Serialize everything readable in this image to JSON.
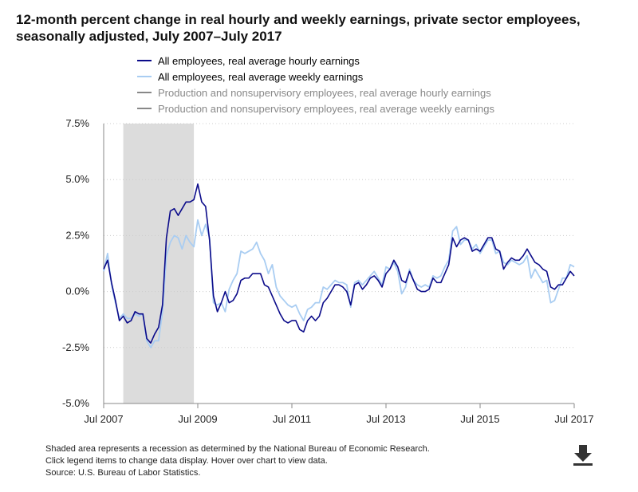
{
  "page": {
    "title": "12-month percent change in real hourly and weekly earnings, private sector employees, seasonally adjusted, July 2007–July 2017",
    "footnotes": [
      "Shaded area represents a recession as determined by the National Bureau of Economic Research.",
      "Click legend items to change data display. Hover over chart to view data.",
      "Source: U.S. Bureau of Labor Statistics."
    ],
    "download_icon": "download-icon"
  },
  "colors": {
    "hourly": "#0b0b8a",
    "weekly": "#a9cdf2",
    "inactive": "#888888",
    "recession": "#dcdcdc",
    "grid": "#cccccc",
    "axis": "#888888"
  },
  "chart_data": {
    "type": "line",
    "title": "12-month percent change in real hourly and weekly earnings, private sector employees, seasonally adjusted, July 2007–July 2017",
    "x_start": "Jul 2007",
    "x_range": [
      0,
      120
    ],
    "x_unit": "months since July 2007",
    "ylim": [
      -5.0,
      7.5
    ],
    "yticks": [
      {
        "value": 7.5,
        "label": "7.5%"
      },
      {
        "value": 5.0,
        "label": "5.0%"
      },
      {
        "value": 2.5,
        "label": "2.5%"
      },
      {
        "value": 0.0,
        "label": "0.0%"
      },
      {
        "value": -2.5,
        "label": "-2.5%"
      },
      {
        "value": -5.0,
        "label": "-5.0%"
      }
    ],
    "xticks": [
      {
        "value": 0,
        "label": "Jul 2007"
      },
      {
        "value": 24,
        "label": "Jul 2009"
      },
      {
        "value": 48,
        "label": "Jul 2011"
      },
      {
        "value": 72,
        "label": "Jul 2013"
      },
      {
        "value": 96,
        "label": "Jul 2015"
      },
      {
        "value": 120,
        "label": "Jul 2017"
      }
    ],
    "recession": {
      "start": 5,
      "end": 23
    },
    "grid": "horizontal-dotted",
    "legend": "top",
    "series": [
      {
        "name": "All employees, real average hourly earnings",
        "active": true,
        "values": [
          [
            0,
            1.0
          ],
          [
            1,
            1.4
          ],
          [
            2,
            0.4
          ],
          [
            3,
            -0.4
          ],
          [
            4,
            -1.3
          ],
          [
            5,
            -1.1
          ],
          [
            6,
            -1.4
          ],
          [
            7,
            -1.3
          ],
          [
            8,
            -0.9
          ],
          [
            9,
            -1.0
          ],
          [
            10,
            -1.0
          ],
          [
            11,
            -2.1
          ],
          [
            12,
            -2.3
          ],
          [
            13,
            -1.9
          ],
          [
            14,
            -1.6
          ],
          [
            15,
            -0.6
          ],
          [
            16,
            2.4
          ],
          [
            17,
            3.6
          ],
          [
            18,
            3.7
          ],
          [
            19,
            3.4
          ],
          [
            20,
            3.7
          ],
          [
            21,
            4.0
          ],
          [
            22,
            4.0
          ],
          [
            23,
            4.1
          ],
          [
            24,
            4.8
          ],
          [
            25,
            4.0
          ],
          [
            26,
            3.8
          ],
          [
            27,
            2.3
          ],
          [
            28,
            -0.2
          ],
          [
            29,
            -0.9
          ],
          [
            30,
            -0.5
          ],
          [
            31,
            0.0
          ],
          [
            32,
            -0.5
          ],
          [
            33,
            -0.4
          ],
          [
            34,
            -0.1
          ],
          [
            35,
            0.5
          ],
          [
            36,
            0.6
          ],
          [
            37,
            0.6
          ],
          [
            38,
            0.8
          ],
          [
            39,
            0.8
          ],
          [
            40,
            0.8
          ],
          [
            41,
            0.3
          ],
          [
            42,
            0.2
          ],
          [
            43,
            -0.2
          ],
          [
            44,
            -0.6
          ],
          [
            45,
            -1.0
          ],
          [
            46,
            -1.3
          ],
          [
            47,
            -1.4
          ],
          [
            48,
            -1.3
          ],
          [
            49,
            -1.3
          ],
          [
            50,
            -1.7
          ],
          [
            51,
            -1.8
          ],
          [
            52,
            -1.3
          ],
          [
            53,
            -1.1
          ],
          [
            54,
            -1.3
          ],
          [
            55,
            -1.1
          ],
          [
            56,
            -0.5
          ],
          [
            57,
            -0.3
          ],
          [
            58,
            0.0
          ],
          [
            59,
            0.3
          ],
          [
            60,
            0.3
          ],
          [
            61,
            0.2
          ],
          [
            62,
            0.0
          ],
          [
            63,
            -0.6
          ],
          [
            64,
            0.3
          ],
          [
            65,
            0.4
          ],
          [
            66,
            0.1
          ],
          [
            67,
            0.3
          ],
          [
            68,
            0.6
          ],
          [
            69,
            0.7
          ],
          [
            70,
            0.5
          ],
          [
            71,
            0.2
          ],
          [
            72,
            0.8
          ],
          [
            73,
            1.0
          ],
          [
            74,
            1.4
          ],
          [
            75,
            1.1
          ],
          [
            76,
            0.5
          ],
          [
            77,
            0.4
          ],
          [
            78,
            0.9
          ],
          [
            79,
            0.5
          ],
          [
            80,
            0.1
          ],
          [
            81,
            0.0
          ],
          [
            82,
            0.0
          ],
          [
            83,
            0.1
          ],
          [
            84,
            0.6
          ],
          [
            85,
            0.4
          ],
          [
            86,
            0.4
          ],
          [
            87,
            0.8
          ],
          [
            88,
            1.2
          ],
          [
            89,
            2.4
          ],
          [
            90,
            2.0
          ],
          [
            91,
            2.3
          ],
          [
            92,
            2.4
          ],
          [
            93,
            2.3
          ],
          [
            94,
            1.8
          ],
          [
            95,
            1.9
          ],
          [
            96,
            1.8
          ],
          [
            97,
            2.1
          ],
          [
            98,
            2.4
          ],
          [
            99,
            2.4
          ],
          [
            100,
            1.9
          ],
          [
            101,
            1.8
          ],
          [
            102,
            1.0
          ],
          [
            103,
            1.3
          ],
          [
            104,
            1.5
          ],
          [
            105,
            1.4
          ],
          [
            106,
            1.4
          ],
          [
            107,
            1.6
          ],
          [
            108,
            1.9
          ],
          [
            109,
            1.6
          ],
          [
            110,
            1.3
          ],
          [
            111,
            1.2
          ],
          [
            112,
            1.0
          ],
          [
            113,
            0.9
          ],
          [
            114,
            0.2
          ],
          [
            115,
            0.1
          ],
          [
            116,
            0.3
          ],
          [
            117,
            0.3
          ],
          [
            118,
            0.6
          ],
          [
            119,
            0.9
          ],
          [
            120,
            0.7
          ]
        ]
      },
      {
        "name": "All employees, real average weekly earnings",
        "active": true,
        "values": [
          [
            0,
            0.9
          ],
          [
            1,
            1.7
          ],
          [
            2,
            0.3
          ],
          [
            3,
            -0.5
          ],
          [
            4,
            -1.2
          ],
          [
            5,
            -1.0
          ],
          [
            6,
            -1.2
          ],
          [
            7,
            -1.2
          ],
          [
            8,
            -1.0
          ],
          [
            9,
            -1.1
          ],
          [
            10,
            -1.0
          ],
          [
            11,
            -2.2
          ],
          [
            12,
            -2.5
          ],
          [
            13,
            -2.2
          ],
          [
            14,
            -2.2
          ],
          [
            15,
            -0.9
          ],
          [
            16,
            1.6
          ],
          [
            17,
            2.2
          ],
          [
            18,
            2.5
          ],
          [
            19,
            2.4
          ],
          [
            20,
            1.9
          ],
          [
            21,
            2.5
          ],
          [
            22,
            2.2
          ],
          [
            23,
            2.0
          ],
          [
            24,
            3.2
          ],
          [
            25,
            2.5
          ],
          [
            26,
            3.0
          ],
          [
            27,
            2.4
          ],
          [
            28,
            -0.5
          ],
          [
            29,
            -0.6
          ],
          [
            30,
            -0.5
          ],
          [
            31,
            -0.9
          ],
          [
            32,
            0.1
          ],
          [
            33,
            0.5
          ],
          [
            34,
            0.8
          ],
          [
            35,
            1.8
          ],
          [
            36,
            1.7
          ],
          [
            37,
            1.8
          ],
          [
            38,
            1.9
          ],
          [
            39,
            2.2
          ],
          [
            40,
            1.7
          ],
          [
            41,
            1.4
          ],
          [
            42,
            0.8
          ],
          [
            43,
            1.2
          ],
          [
            44,
            0.2
          ],
          [
            45,
            -0.2
          ],
          [
            46,
            -0.4
          ],
          [
            47,
            -0.6
          ],
          [
            48,
            -0.7
          ],
          [
            49,
            -0.6
          ],
          [
            50,
            -1.0
          ],
          [
            51,
            -1.3
          ],
          [
            52,
            -0.8
          ],
          [
            53,
            -0.7
          ],
          [
            54,
            -0.5
          ],
          [
            55,
            -0.5
          ],
          [
            56,
            0.2
          ],
          [
            57,
            0.1
          ],
          [
            58,
            0.3
          ],
          [
            59,
            0.5
          ],
          [
            60,
            0.4
          ],
          [
            61,
            0.4
          ],
          [
            62,
            0.3
          ],
          [
            63,
            -0.7
          ],
          [
            64,
            0.4
          ],
          [
            65,
            0.5
          ],
          [
            66,
            0.3
          ],
          [
            67,
            0.5
          ],
          [
            68,
            0.7
          ],
          [
            69,
            0.9
          ],
          [
            70,
            0.6
          ],
          [
            71,
            0.3
          ],
          [
            72,
            1.1
          ],
          [
            73,
            1.0
          ],
          [
            74,
            1.3
          ],
          [
            75,
            0.9
          ],
          [
            76,
            -0.1
          ],
          [
            77,
            0.2
          ],
          [
            78,
            1.0
          ],
          [
            79,
            0.5
          ],
          [
            80,
            0.3
          ],
          [
            81,
            0.2
          ],
          [
            82,
            0.3
          ],
          [
            83,
            0.2
          ],
          [
            84,
            0.7
          ],
          [
            85,
            0.6
          ],
          [
            86,
            0.7
          ],
          [
            87,
            1.1
          ],
          [
            88,
            1.4
          ],
          [
            89,
            2.7
          ],
          [
            90,
            2.9
          ],
          [
            91,
            2.1
          ],
          [
            92,
            2.3
          ],
          [
            93,
            2.3
          ],
          [
            94,
            1.9
          ],
          [
            95,
            2.1
          ],
          [
            96,
            1.7
          ],
          [
            97,
            2.0
          ],
          [
            98,
            2.3
          ],
          [
            99,
            2.3
          ],
          [
            100,
            1.7
          ],
          [
            101,
            1.8
          ],
          [
            102,
            1.3
          ],
          [
            103,
            1.2
          ],
          [
            104,
            1.4
          ],
          [
            105,
            1.3
          ],
          [
            106,
            1.2
          ],
          [
            107,
            1.3
          ],
          [
            108,
            1.6
          ],
          [
            109,
            0.6
          ],
          [
            110,
            1.0
          ],
          [
            111,
            0.7
          ],
          [
            112,
            0.4
          ],
          [
            113,
            0.5
          ],
          [
            114,
            -0.5
          ],
          [
            115,
            -0.4
          ],
          [
            116,
            0.1
          ],
          [
            117,
            0.6
          ],
          [
            118,
            0.6
          ],
          [
            119,
            1.2
          ],
          [
            120,
            1.1
          ]
        ]
      },
      {
        "name": "Production and nonsupervisory employees, real average hourly earnings",
        "active": false,
        "values": []
      },
      {
        "name": "Production and nonsupervisory employees, real average weekly earnings",
        "active": false,
        "values": []
      }
    ]
  }
}
